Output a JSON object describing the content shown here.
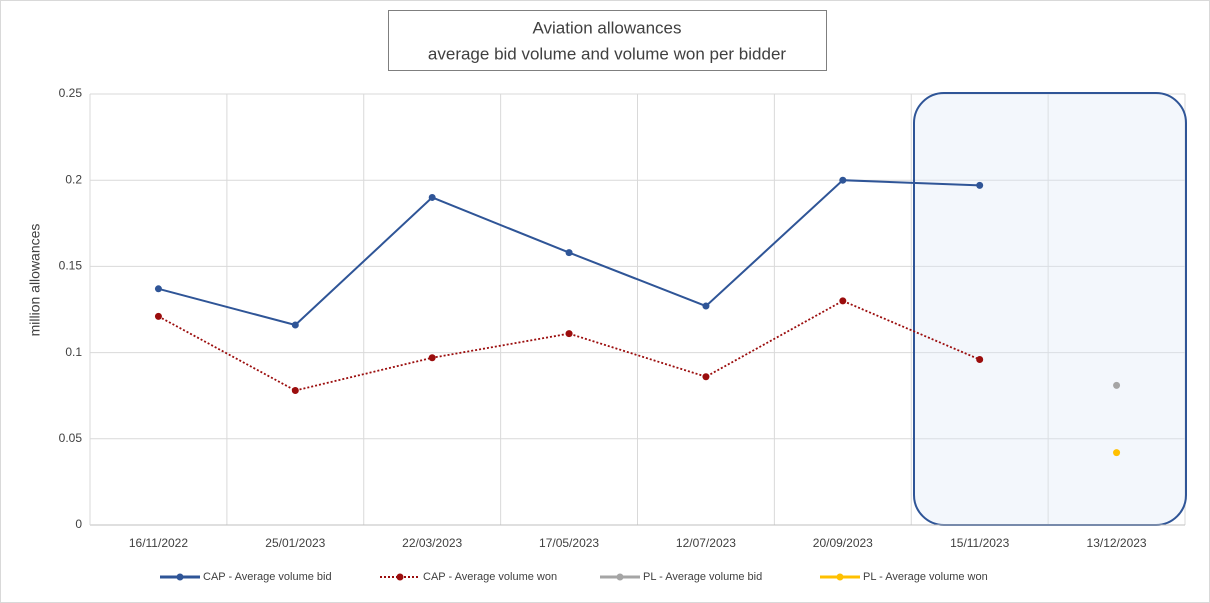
{
  "chart_data": {
    "type": "line",
    "title": "Aviation allowances",
    "subtitle": "average bid volume and volume won per bidder",
    "y_label": "million allowances",
    "categories": [
      "16/11/2022",
      "25/01/2023",
      "22/03/2023",
      "17/05/2023",
      "12/07/2023",
      "20/09/2023",
      "15/11/2023",
      "13/12/2023"
    ],
    "series": [
      {
        "name": "CAP - Average volume bid",
        "color": "#2f5597",
        "line_style": "solid",
        "values": [
          0.137,
          0.116,
          0.19,
          0.158,
          0.127,
          0.2,
          0.197,
          null
        ]
      },
      {
        "name": "CAP - Average volume won",
        "color": "#9b0d0d",
        "line_style": "dotted",
        "values": [
          0.121,
          0.078,
          0.097,
          0.111,
          0.086,
          0.13,
          0.096,
          null
        ]
      },
      {
        "name": "PL - Average volume bid",
        "color": "#a5a5a5",
        "line_style": "solid",
        "values": [
          null,
          null,
          null,
          null,
          null,
          null,
          null,
          0.081
        ]
      },
      {
        "name": "PL - Average volume won",
        "color": "#ffc000",
        "line_style": "solid",
        "values": [
          null,
          null,
          null,
          null,
          null,
          null,
          null,
          0.042
        ]
      }
    ],
    "ylim": [
      0,
      0.25
    ],
    "yticks": [
      0,
      0.05,
      0.1,
      0.15,
      0.2,
      0.25
    ],
    "grid": true,
    "legend": "bottom"
  }
}
